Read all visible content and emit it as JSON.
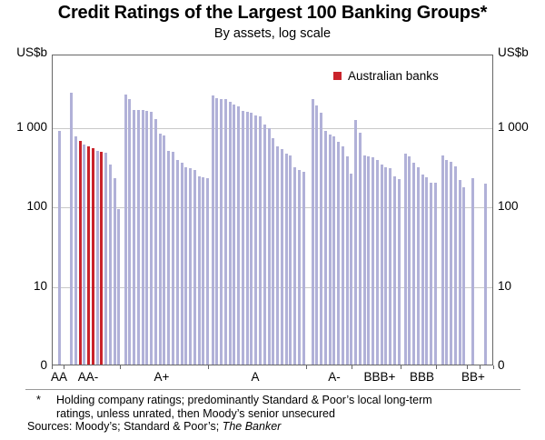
{
  "title": "Credit Ratings of the Largest 100 Banking Groups*",
  "subtitle": "By assets, log scale",
  "axis": {
    "unit_left": "US$b",
    "unit_right": "US$b"
  },
  "legend": {
    "label": "Australian banks",
    "color": "#c9232b"
  },
  "footnote": {
    "marker": "*",
    "line1": "Holding company ratings; predominantly Standard & Poor’s local long-term",
    "line2": "ratings, unless unrated, then Moody’s senior unsecured",
    "sources_prefix": "Sources: Moody’s; Standard & Poor’s; ",
    "sources_italic": "The Banker"
  },
  "chart_data": {
    "type": "bar",
    "title": "Credit Ratings of the Largest 100 Banking Groups",
    "subtitle": "By assets, log scale",
    "ylabel": "US$b",
    "yscale": "log",
    "ylim": [
      1,
      4000
    ],
    "grid": "horizontal",
    "legend_position": "top-right-inside",
    "ytick_labels": [
      "1 000",
      "100",
      "10",
      "0"
    ],
    "ytick_values": [
      1000,
      100,
      10,
      1
    ],
    "colors": {
      "bar": "#b1b1d8",
      "australian": "#c9232b",
      "gridline": "#c9c9c9"
    },
    "groups": [
      {
        "label": "AA",
        "values": [
          880
        ],
        "australian": []
      },
      {
        "label": "AA-",
        "values": [
          2650,
          750,
          660,
          590,
          560,
          530,
          495,
          480,
          470,
          335,
          220,
          90
        ],
        "australian": [
          2,
          4,
          5,
          7
        ]
      },
      {
        "label": "A+",
        "values": [
          2510,
          2200,
          1620,
          1600,
          1590,
          1560,
          1545,
          1245,
          800,
          770,
          495,
          475,
          380,
          350,
          305,
          295,
          280,
          235,
          230,
          225
        ],
        "australian": []
      },
      {
        "label": "A",
        "values": [
          2450,
          2260,
          2230,
          2190,
          2020,
          1900,
          1800,
          1580,
          1510,
          1490,
          1360,
          1320,
          1060,
          955,
          705,
          565,
          520,
          455,
          435,
          305,
          280,
          265
        ],
        "australian": []
      },
      {
        "label": "A-",
        "values": [
          2230,
          1850,
          1490,
          880,
          790,
          740,
          645,
          565,
          415,
          255
        ],
        "australian": []
      },
      {
        "label": "BBB+",
        "values": [
          1190,
          840,
          425,
          415,
          410,
          380,
          335,
          305,
          295,
          235,
          215
        ],
        "australian": []
      },
      {
        "label": "BBB",
        "values": [
          455,
          420,
          345,
          305,
          245,
          230,
          197,
          194
        ],
        "australian": []
      },
      {
        "label": "",
        "values": [
          425,
          375,
          355,
          315,
          210,
          172
        ],
        "australian": []
      },
      {
        "label": "BB+",
        "values": [
          222
        ],
        "australian": []
      },
      {
        "label": "",
        "values": [
          190
        ],
        "australian": []
      }
    ]
  }
}
